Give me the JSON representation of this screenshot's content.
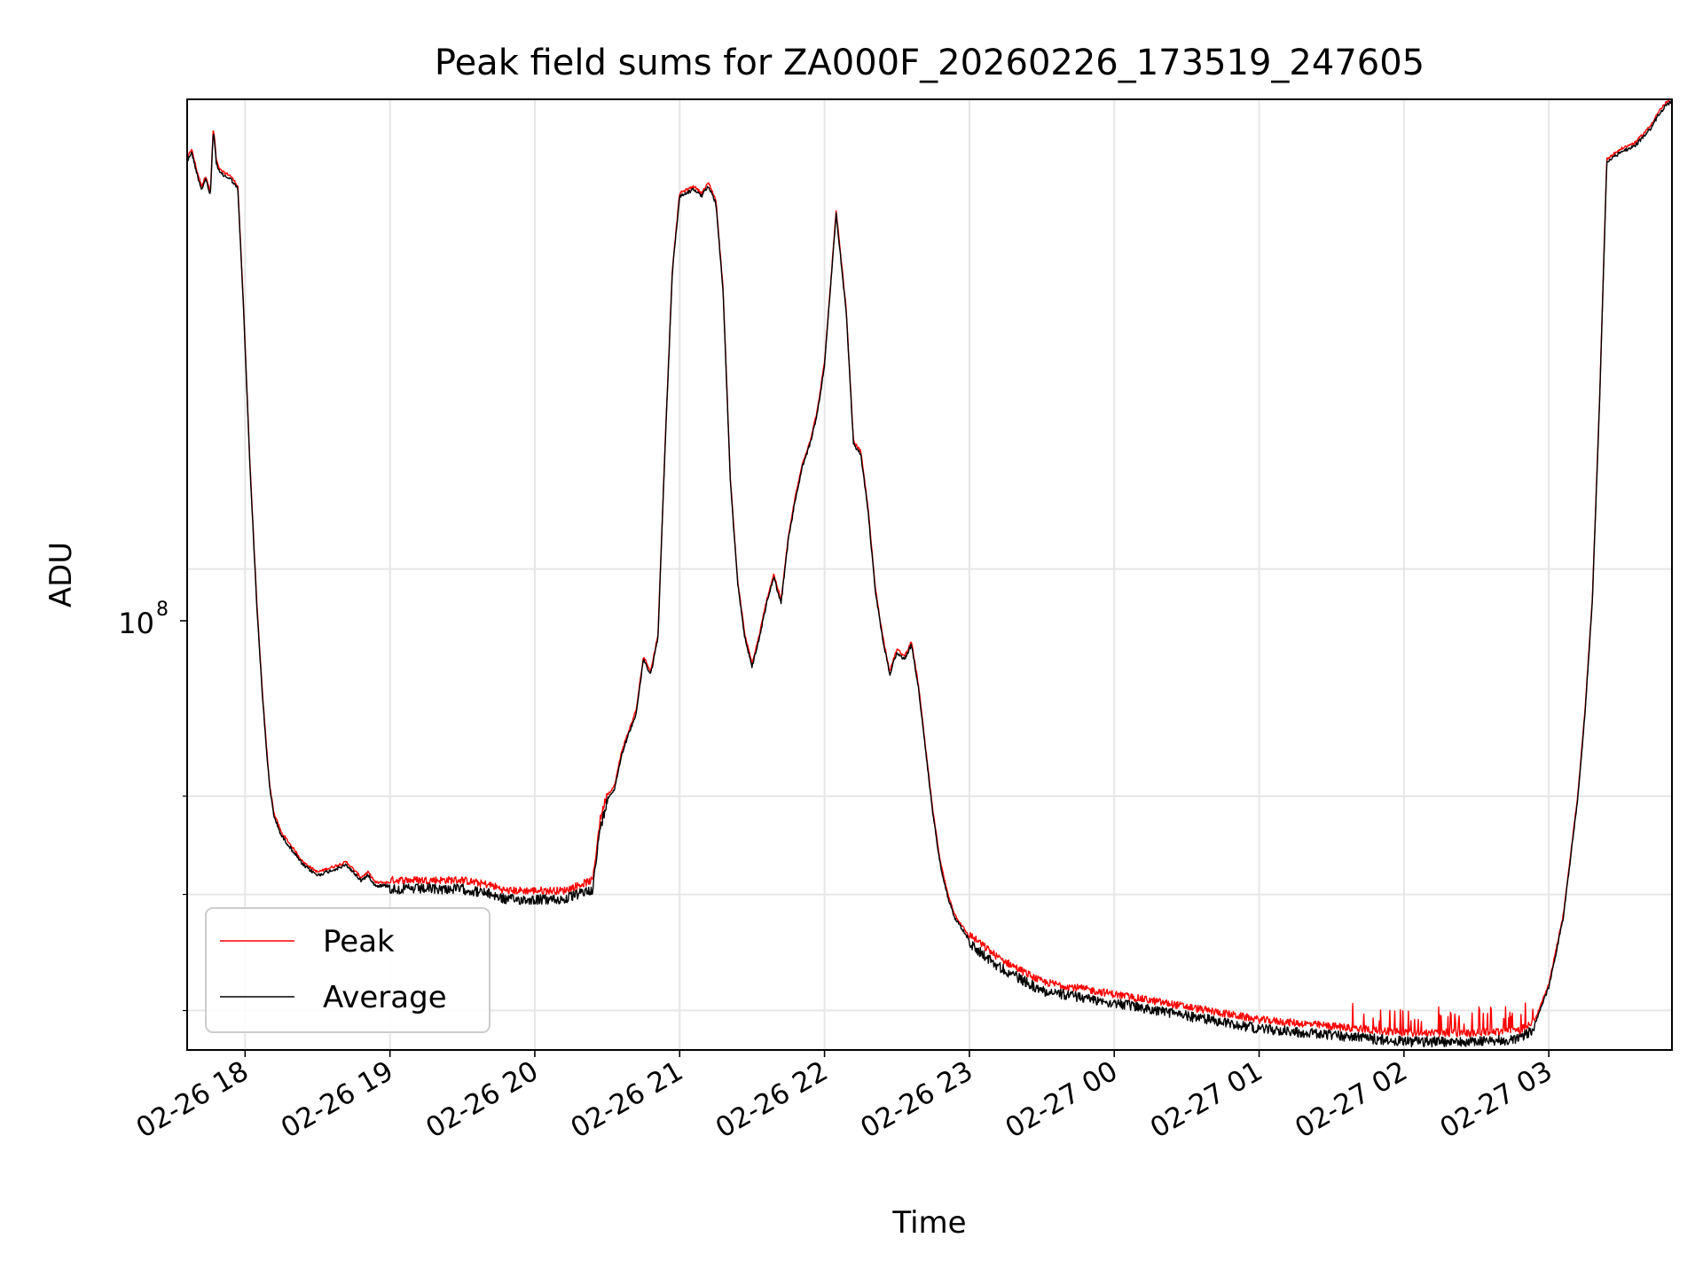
{
  "chart_data": {
    "type": "line",
    "title": "Peak field sums for ZA000F_20260226_173519_247605",
    "xlabel": "Time",
    "ylabel": "ADU",
    "y_scale": "log",
    "y_tick_label": {
      "base": "10",
      "exponent": "8",
      "value": 100000000
    },
    "y_minor_ticks": [
      50000000,
      60000000,
      70000000
    ],
    "xlim_hours": [
      -0.4,
      9.85
    ],
    "ylim": [
      47000000,
      209000000
    ],
    "x_ticks": [
      {
        "hours": 0,
        "label": "02-26 18"
      },
      {
        "hours": 1,
        "label": "02-26 19"
      },
      {
        "hours": 2,
        "label": "02-26 20"
      },
      {
        "hours": 3,
        "label": "02-26 21"
      },
      {
        "hours": 4,
        "label": "02-26 22"
      },
      {
        "hours": 5,
        "label": "02-26 23"
      },
      {
        "hours": 6,
        "label": "02-27 00"
      },
      {
        "hours": 7,
        "label": "02-27 01"
      },
      {
        "hours": 8,
        "label": "02-27 02"
      },
      {
        "hours": 9,
        "label": "02-27 03"
      }
    ],
    "grid": true,
    "legend_position": "lower-left",
    "series": [
      {
        "name": "Peak",
        "color": "#ff0000",
        "noise_upper": 0.012
      },
      {
        "name": "Average",
        "color": "#000000",
        "noise_lower": 0.01
      }
    ],
    "x_hours": [
      -0.4,
      -0.37,
      -0.33,
      -0.3,
      -0.27,
      -0.24,
      -0.22,
      -0.21,
      -0.2,
      -0.18,
      -0.15,
      -0.1,
      -0.05,
      -0.01,
      0.03,
      0.08,
      0.12,
      0.15,
      0.17,
      0.2,
      0.25,
      0.3,
      0.35,
      0.4,
      0.5,
      0.6,
      0.7,
      0.8,
      0.85,
      0.9,
      1.0,
      1.2,
      1.5,
      1.7,
      1.8,
      2.0,
      2.2,
      2.4,
      2.45,
      2.5,
      2.55,
      2.6,
      2.7,
      2.75,
      2.8,
      2.85,
      2.9,
      2.95,
      3.0,
      3.05,
      3.1,
      3.15,
      3.2,
      3.25,
      3.3,
      3.35,
      3.4,
      3.45,
      3.5,
      3.55,
      3.6,
      3.65,
      3.7,
      3.75,
      3.8,
      3.85,
      3.9,
      3.95,
      4.0,
      4.05,
      4.08,
      4.15,
      4.2,
      4.25,
      4.3,
      4.35,
      4.4,
      4.45,
      4.5,
      4.55,
      4.6,
      4.65,
      4.7,
      4.75,
      4.8,
      4.85,
      4.9,
      5.0,
      5.2,
      5.5,
      6.0,
      6.5,
      7.0,
      7.5,
      8.0,
      8.5,
      8.8,
      8.9,
      9.0,
      9.1,
      9.2,
      9.25,
      9.3,
      9.35,
      9.4,
      9.5,
      9.6,
      9.7,
      9.75,
      9.8,
      9.85
    ],
    "average_values": [
      190000000,
      193000000,
      186000000,
      182000000,
      185000000,
      180000000,
      199000000,
      196000000,
      190000000,
      187000000,
      186000000,
      185000000,
      182000000,
      150000000,
      120000000,
      95000000,
      82000000,
      75000000,
      71000000,
      68000000,
      66000000,
      65000000,
      64000000,
      63000000,
      62000000,
      62500000,
      63000000,
      61500000,
      62000000,
      61000000,
      61000000,
      61000000,
      61000000,
      60500000,
      60000000,
      60000000,
      60000000,
      61000000,
      67000000,
      70000000,
      71000000,
      75000000,
      80000000,
      87000000,
      85000000,
      90000000,
      122000000,
      160000000,
      180000000,
      181000000,
      182000000,
      180000000,
      183000000,
      178000000,
      155000000,
      115000000,
      98000000,
      90000000,
      86000000,
      90000000,
      95000000,
      99000000,
      95000000,
      105000000,
      112000000,
      118000000,
      122000000,
      128000000,
      138000000,
      160000000,
      175000000,
      150000000,
      122000000,
      120000000,
      110000000,
      97000000,
      90000000,
      85000000,
      88000000,
      87000000,
      89000000,
      83000000,
      75000000,
      68000000,
      63000000,
      60000000,
      58000000,
      56000000,
      54000000,
      52000000,
      51000000,
      50000000,
      49000000,
      48500000,
      48000000,
      48000000,
      48200000,
      49000000,
      52000000,
      58000000,
      70000000,
      80000000,
      95000000,
      130000000,
      190000000,
      193000000,
      195000000,
      200000000,
      204000000,
      207000000,
      209000000
    ]
  },
  "legend": {
    "peak_label": "Peak",
    "average_label": "Average"
  }
}
